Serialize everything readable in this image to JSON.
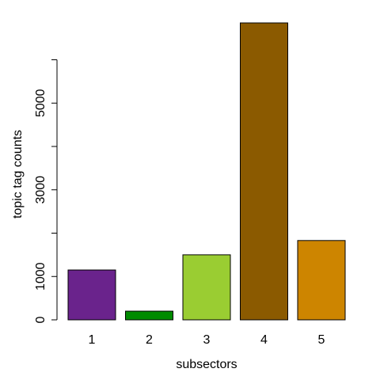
{
  "chart_data": {
    "type": "bar",
    "categories": [
      "1",
      "2",
      "3",
      "4",
      "5"
    ],
    "values": [
      1150,
      200,
      1500,
      6850,
      1830
    ],
    "colors": [
      "#6a238c",
      "#008b00",
      "#9acd32",
      "#8b5a00",
      "#cd8500"
    ],
    "xlabel": "subsectors",
    "ylabel": "topic tag counts",
    "ylim": [
      0,
      7000
    ],
    "y_ticks": [
      0,
      1000,
      2000,
      3000,
      4000,
      5000,
      6000
    ],
    "y_tick_labels": [
      "0",
      "1000",
      "",
      "3000",
      "",
      "5000",
      ""
    ],
    "grid": false,
    "legend": "none"
  }
}
